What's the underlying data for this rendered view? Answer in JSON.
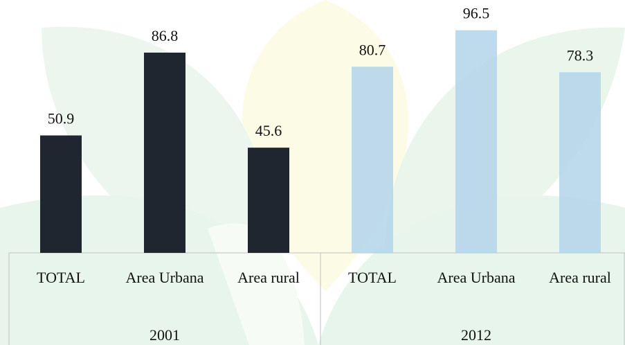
{
  "chart_data": {
    "type": "grouped-bar",
    "groups": [
      {
        "name": "2001",
        "color": "#1f2630",
        "categories": [
          "TOTAL",
          "Area Urbana",
          "Area rural"
        ],
        "values": [
          50.9,
          86.8,
          45.6
        ]
      },
      {
        "name": "2012",
        "color": "#b3d3ea",
        "categories": [
          "TOTAL",
          "Area Urbana",
          "Area rural"
        ],
        "values": [
          80.7,
          96.5,
          78.3
        ]
      }
    ]
  }
}
